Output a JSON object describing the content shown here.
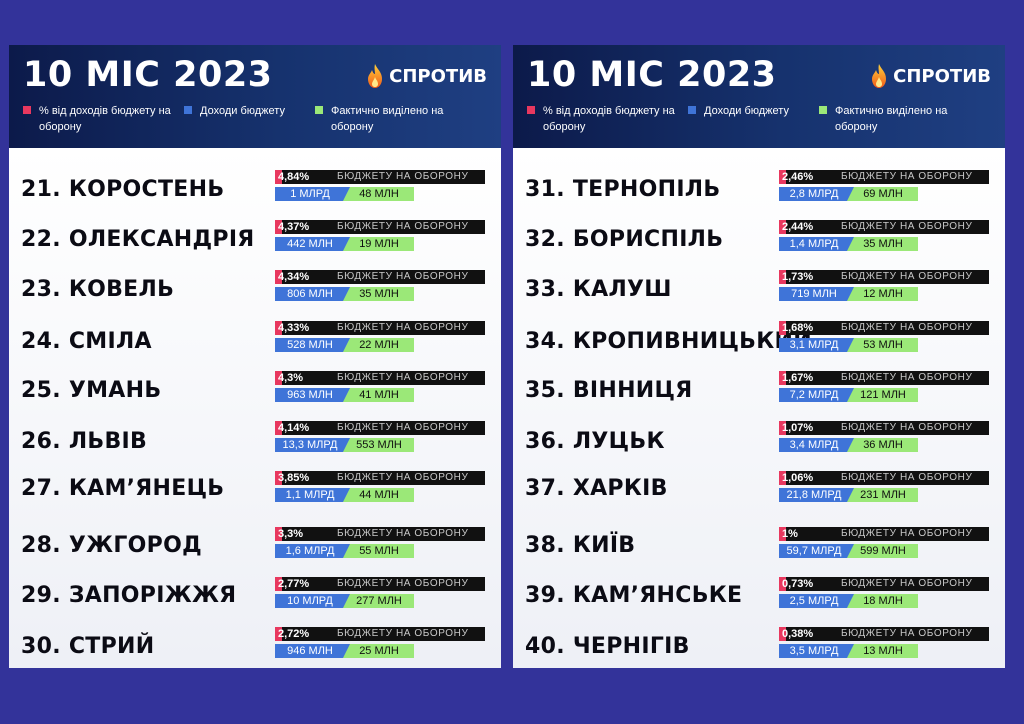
{
  "panels": [
    {
      "title": "10 МІС 2023",
      "logo_text": "СПРОТИВ",
      "logo_icon": "flame-icon",
      "legend": [
        {
          "label": "% від доходів бюджету на оборону",
          "color": "#e8385f"
        },
        {
          "label": "Доходи бюджету",
          "color": "#3f74d8"
        },
        {
          "label": "Фактично виділено на оборону",
          "color": "#9be878"
        }
      ],
      "budget_label": "БЮДЖЕТУ НА ОБОРОНУ",
      "rows": [
        {
          "rank": "21. КОРОСТЕНЬ",
          "pct": "4,84%",
          "income": "1 МЛРД",
          "defense": "48 МЛН"
        },
        {
          "rank": "22. ОЛЕКСАНДРІЯ",
          "pct": "4,37%",
          "income": "442 МЛН",
          "defense": "19 МЛН"
        },
        {
          "rank": "23. КОВЕЛЬ",
          "pct": "4,34%",
          "income": "806 МЛН",
          "defense": "35 МЛН"
        },
        {
          "rank": "24. СМІЛА",
          "pct": "4,33%",
          "income": "528 МЛН",
          "defense": "22 МЛН"
        },
        {
          "rank": "25. УМАНЬ",
          "pct": "4,3%",
          "income": "963 МЛН",
          "defense": "41 МЛН"
        },
        {
          "rank": "26. ЛЬВІВ",
          "pct": "4,14%",
          "income": "13,3 МЛРД",
          "defense": "553 МЛН"
        },
        {
          "rank": "27. КАМ’ЯНЕЦЬ",
          "pct": "3,85%",
          "income": "1,1 МЛРД",
          "defense": "44 МЛН"
        },
        {
          "rank": "28. УЖГОРОД",
          "pct": "3,3%",
          "income": "1,6 МЛРД",
          "defense": "55 МЛН"
        },
        {
          "rank": "29. ЗАПОРІЖЖЯ",
          "pct": "2,77%",
          "income": "10 МЛРД",
          "defense": "277 МЛН"
        },
        {
          "rank": "30. СТРИЙ",
          "pct": "2,72%",
          "income": "946 МЛН",
          "defense": "25 МЛН"
        }
      ]
    },
    {
      "title": "10 МІС 2023",
      "logo_text": "СПРОТИВ",
      "logo_icon": "flame-icon",
      "legend": [
        {
          "label": "% від доходів бюджету на оборону",
          "color": "#e8385f"
        },
        {
          "label": "Доходи бюджету",
          "color": "#3f74d8"
        },
        {
          "label": "Фактично виділено на оборону",
          "color": "#9be878"
        }
      ],
      "budget_label": "БЮДЖЕТУ НА ОБОРОНУ",
      "rows": [
        {
          "rank": "31. ТЕРНОПІЛЬ",
          "pct": "2,46%",
          "income": "2,8 МЛРД",
          "defense": "69 МЛН"
        },
        {
          "rank": "32. БОРИСПІЛЬ",
          "pct": "2,44%",
          "income": "1,4 МЛРД",
          "defense": "35 МЛН"
        },
        {
          "rank": "33. КАЛУШ",
          "pct": "1,73%",
          "income": "719 МЛН",
          "defense": "12 МЛН"
        },
        {
          "rank": "34. КРОПИВНИЦЬКИЙ",
          "pct": "1,68%",
          "income": "3,1 МЛРД",
          "defense": "53 МЛН"
        },
        {
          "rank": "35. ВІННИЦЯ",
          "pct": "1,67%",
          "income": "7,2 МЛРД",
          "defense": "121 МЛН"
        },
        {
          "rank": "36. ЛУЦЬК",
          "pct": "1,07%",
          "income": "3,4 МЛРД",
          "defense": "36 МЛН"
        },
        {
          "rank": "37. ХАРКІВ",
          "pct": "1,06%",
          "income": "21,8 МЛРД",
          "defense": "231 МЛН"
        },
        {
          "rank": "38. КИЇВ",
          "pct": "1%",
          "income": "59,7 МЛРД",
          "defense": "599 МЛН"
        },
        {
          "rank": "39. КАМ’ЯНСЬКЕ",
          "pct": "0,73%",
          "income": "2,5 МЛРД",
          "defense": "18 МЛН"
        },
        {
          "rank": "40. ЧЕРНІГІВ",
          "pct": "0,38%",
          "income": "3,5 МЛРД",
          "defense": "13 МЛН"
        }
      ]
    }
  ],
  "chart_data": {
    "type": "table",
    "columns": [
      "% від доходів бюджету на оборону",
      "Доходи бюджету",
      "Фактично виділено на оборону"
    ],
    "rows": [
      [
        "21. КОРОСТЕНЬ",
        "4,84%",
        "1 МЛРД",
        "48 МЛН"
      ],
      [
        "22. ОЛЕКСАНДРІЯ",
        "4,37%",
        "442 МЛН",
        "19 МЛН"
      ],
      [
        "23. КОВЕЛЬ",
        "4,34%",
        "806 МЛН",
        "35 МЛН"
      ],
      [
        "24. СМІЛА",
        "4,33%",
        "528 МЛН",
        "22 МЛН"
      ],
      [
        "25. УМАНЬ",
        "4,3%",
        "963 МЛН",
        "41 МЛН"
      ],
      [
        "26. ЛЬВІВ",
        "4,14%",
        "13,3 МЛРД",
        "553 МЛН"
      ],
      [
        "27. КАМ’ЯНЕЦЬ",
        "3,85%",
        "1,1 МЛРД",
        "44 МЛН"
      ],
      [
        "28. УЖГОРОД",
        "3,3%",
        "1,6 МЛРД",
        "55 МЛН"
      ],
      [
        "29. ЗАПОРІЖЖЯ",
        "2,77%",
        "10 МЛРД",
        "277 МЛН"
      ],
      [
        "30. СТРИЙ",
        "2,72%",
        "946 МЛН",
        "25 МЛН"
      ],
      [
        "31. ТЕРНОПІЛЬ",
        "2,46%",
        "2,8 МЛРД",
        "69 МЛН"
      ],
      [
        "32. БОРИСПІЛЬ",
        "2,44%",
        "1,4 МЛРД",
        "35 МЛН"
      ],
      [
        "33. КАЛУШ",
        "1,73%",
        "719 МЛН",
        "12 МЛН"
      ],
      [
        "34. КРОПИВНИЦЬКИЙ",
        "1,68%",
        "3,1 МЛРД",
        "53 МЛН"
      ],
      [
        "35. ВІННИЦЯ",
        "1,67%",
        "7,2 МЛРД",
        "121 МЛН"
      ],
      [
        "36. ЛУЦЬК",
        "1,07%",
        "3,4 МЛРД",
        "36 МЛН"
      ],
      [
        "37. ХАРКІВ",
        "1,06%",
        "21,8 МЛРД",
        "231 МЛН"
      ],
      [
        "38. КИЇВ",
        "1%",
        "59,7 МЛРД",
        "599 МЛН"
      ],
      [
        "39. КАМ’ЯНСЬКЕ",
        "0,73%",
        "2,5 МЛРД",
        "18 МЛН"
      ],
      [
        "40. ЧЕРНІГІВ",
        "0,38%",
        "3,5 МЛРД",
        "13 МЛН"
      ]
    ]
  }
}
